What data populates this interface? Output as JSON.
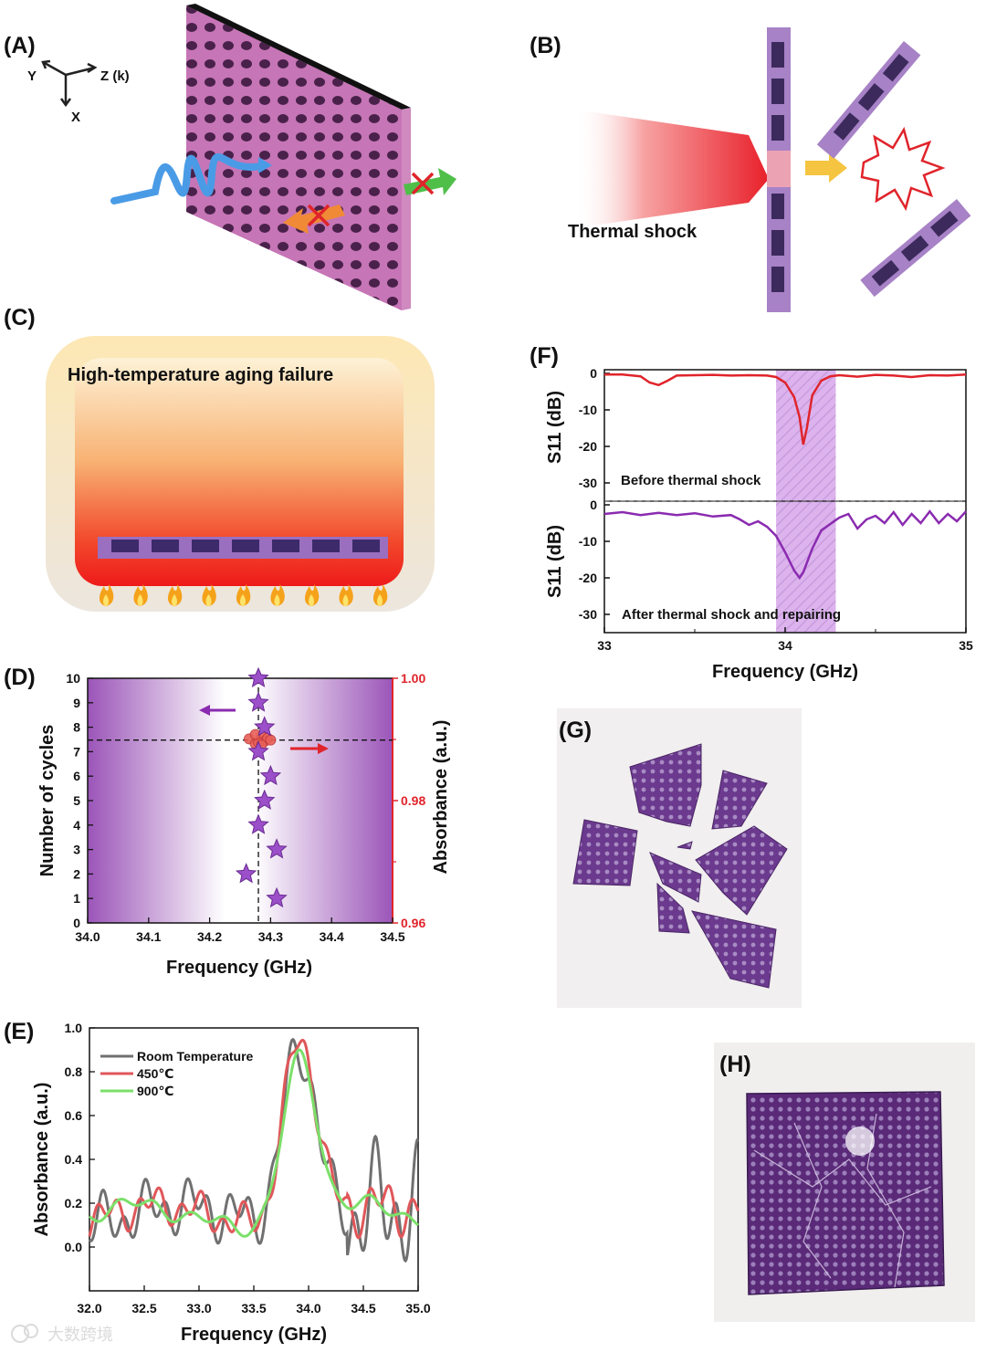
{
  "panels": {
    "A": {
      "label": "(A)",
      "axes": {
        "y": "Y",
        "z": "Z (k)",
        "x": "X"
      }
    },
    "B": {
      "label": "(B)",
      "thermal_shock_label": "Thermal shock"
    },
    "C": {
      "label": "(C)",
      "title": "High-temperature aging failure"
    },
    "F": {
      "label": "(F)",
      "top_ylabel": "S11 (dB)",
      "bottom_ylabel": "S11 (dB)",
      "top_annotation": "Before thermal shock",
      "bottom_annotation": "After thermal shock and repairing",
      "xlabel": "Frequency (GHz)",
      "highlight_band": [
        33.95,
        34.28
      ]
    },
    "D": {
      "label": "(D)",
      "ylabel_left": "Number of cycles",
      "ylabel_right": "Absorbance (a.u.)",
      "xlabel": "Frequency (GHz)",
      "mean_frequency": 34.28,
      "mean_absorbance": 0.9899
    },
    "E": {
      "label": "(E)",
      "xlabel": "Frequency (GHz)",
      "ylabel": "Absorbance (a.u.)"
    },
    "G": {
      "label": "(G)"
    },
    "H": {
      "label": "(H)"
    }
  },
  "watermark": "大数跨境",
  "colors": {
    "purple": "#8a3fb3",
    "red": "#e0242b",
    "gray": "#707070",
    "red_line": "#e0575a",
    "green_line": "#7be06a",
    "sheet_pink": "#c878b8"
  },
  "chart_data": [
    {
      "panel": "F-top",
      "type": "line",
      "title": "",
      "xlabel": "Frequency (GHz)",
      "ylabel": "S11 (dB)",
      "xlim": [
        33,
        35
      ],
      "ylim": [
        -35,
        0
      ],
      "x_ticks": [
        "33",
        "34",
        "35"
      ],
      "y_ticks": [
        "0",
        "-10",
        "-20",
        "-30"
      ],
      "series": [
        {
          "color": "#e0242b",
          "x": [
            33.0,
            33.1,
            33.2,
            33.25,
            33.3,
            33.35,
            33.4,
            33.5,
            33.6,
            33.7,
            33.8,
            33.9,
            33.95,
            34.0,
            34.05,
            34.08,
            34.1,
            34.12,
            34.15,
            34.2,
            34.25,
            34.3,
            34.4,
            34.5,
            34.6,
            34.7,
            34.8,
            34.9,
            35.0
          ],
          "y": [
            -0.3,
            -0.3,
            -0.8,
            -2.5,
            -3.2,
            -2.0,
            -0.6,
            -0.5,
            -0.4,
            -0.6,
            -0.5,
            -0.6,
            -1.0,
            -2.5,
            -6.5,
            -12.0,
            -19.5,
            -15.0,
            -6.0,
            -2.0,
            -0.8,
            -0.5,
            -0.9,
            -0.4,
            -0.6,
            -1.0,
            -0.5,
            -0.6,
            -0.3
          ]
        }
      ]
    },
    {
      "panel": "F-bottom",
      "type": "line",
      "xlabel": "Frequency (GHz)",
      "ylabel": "S11 (dB)",
      "xlim": [
        33,
        35
      ],
      "ylim": [
        -35,
        0
      ],
      "x_ticks": [
        "33",
        "34",
        "35"
      ],
      "y_ticks": [
        "0",
        "-10",
        "-20",
        "-30"
      ],
      "series": [
        {
          "color": "#8a2bb0",
          "x": [
            33.0,
            33.1,
            33.2,
            33.3,
            33.4,
            33.5,
            33.6,
            33.7,
            33.75,
            33.8,
            33.85,
            33.9,
            33.95,
            34.0,
            34.05,
            34.08,
            34.1,
            34.15,
            34.2,
            34.3,
            34.35,
            34.4,
            34.45,
            34.5,
            34.55,
            34.6,
            34.65,
            34.7,
            34.75,
            34.8,
            34.85,
            34.9,
            34.95,
            35.0
          ],
          "y": [
            -2.5,
            -2.0,
            -2.8,
            -2.2,
            -2.8,
            -2.3,
            -3.2,
            -2.8,
            -4.0,
            -5.5,
            -4.5,
            -6.0,
            -8.5,
            -13.0,
            -18.0,
            -20.0,
            -18.5,
            -12.0,
            -7.0,
            -3.5,
            -2.5,
            -6.5,
            -4.0,
            -3.0,
            -5.0,
            -2.0,
            -5.5,
            -2.5,
            -5.0,
            -1.8,
            -5.0,
            -2.5,
            -4.5,
            -1.8
          ]
        }
      ]
    },
    {
      "panel": "D",
      "type": "scatter",
      "xlabel": "Frequency (GHz)",
      "ylabel": "Number of cycles",
      "ylabel_right": "Absorbance (a.u.)",
      "xlim": [
        34.0,
        34.5
      ],
      "ylim": [
        0,
        10
      ],
      "ylim_right": [
        0.96,
        1.0
      ],
      "x_ticks": [
        "34.0",
        "34.1",
        "34.2",
        "34.3",
        "34.4",
        "34.5"
      ],
      "y_ticks": [
        "0",
        "1",
        "2",
        "3",
        "4",
        "5",
        "6",
        "7",
        "8",
        "9",
        "10"
      ],
      "y_ticks_right": [
        "0.96",
        "0.98",
        "1.00"
      ],
      "series": [
        {
          "marker": "star",
          "color": "#9b4fc8",
          "cycles": [
            1,
            2,
            3,
            4,
            5,
            6,
            7,
            8,
            9,
            10
          ],
          "frequency": [
            34.31,
            34.26,
            34.31,
            34.28,
            34.29,
            34.3,
            34.28,
            34.29,
            34.28,
            34.28
          ]
        },
        {
          "marker": "circle",
          "color": "#e86058",
          "frequency": [
            34.265,
            34.275,
            34.285,
            34.29,
            34.295,
            34.28,
            34.3,
            34.275,
            34.285
          ],
          "absorbance": [
            0.9901,
            0.9893,
            0.9905,
            0.9897,
            0.9902,
            0.9895,
            0.9899,
            0.9908,
            0.9891
          ]
        }
      ]
    },
    {
      "panel": "E",
      "type": "line",
      "xlabel": "Frequency (GHz)",
      "ylabel": "Absorbance (a.u.)",
      "xlim": [
        32.0,
        35.0
      ],
      "ylim": [
        -0.2,
        1.0
      ],
      "x_ticks": [
        "32.0",
        "32.5",
        "33.0",
        "33.5",
        "34.0",
        "34.5",
        "35.0"
      ],
      "y_ticks": [
        "0.0",
        "0.2",
        "0.4",
        "0.6",
        "0.8",
        "1.0"
      ],
      "legend_position": "top-left",
      "series": [
        {
          "name": "Room Temperature",
          "color": "#707070"
        },
        {
          "name": "450℃",
          "color": "#e0575a"
        },
        {
          "name": "900℃",
          "color": "#7be06a"
        }
      ],
      "peak": {
        "x": [
          33.88,
          33.9,
          33.93
        ],
        "y": [
          0.92,
          0.96,
          0.87
        ]
      }
    }
  ]
}
